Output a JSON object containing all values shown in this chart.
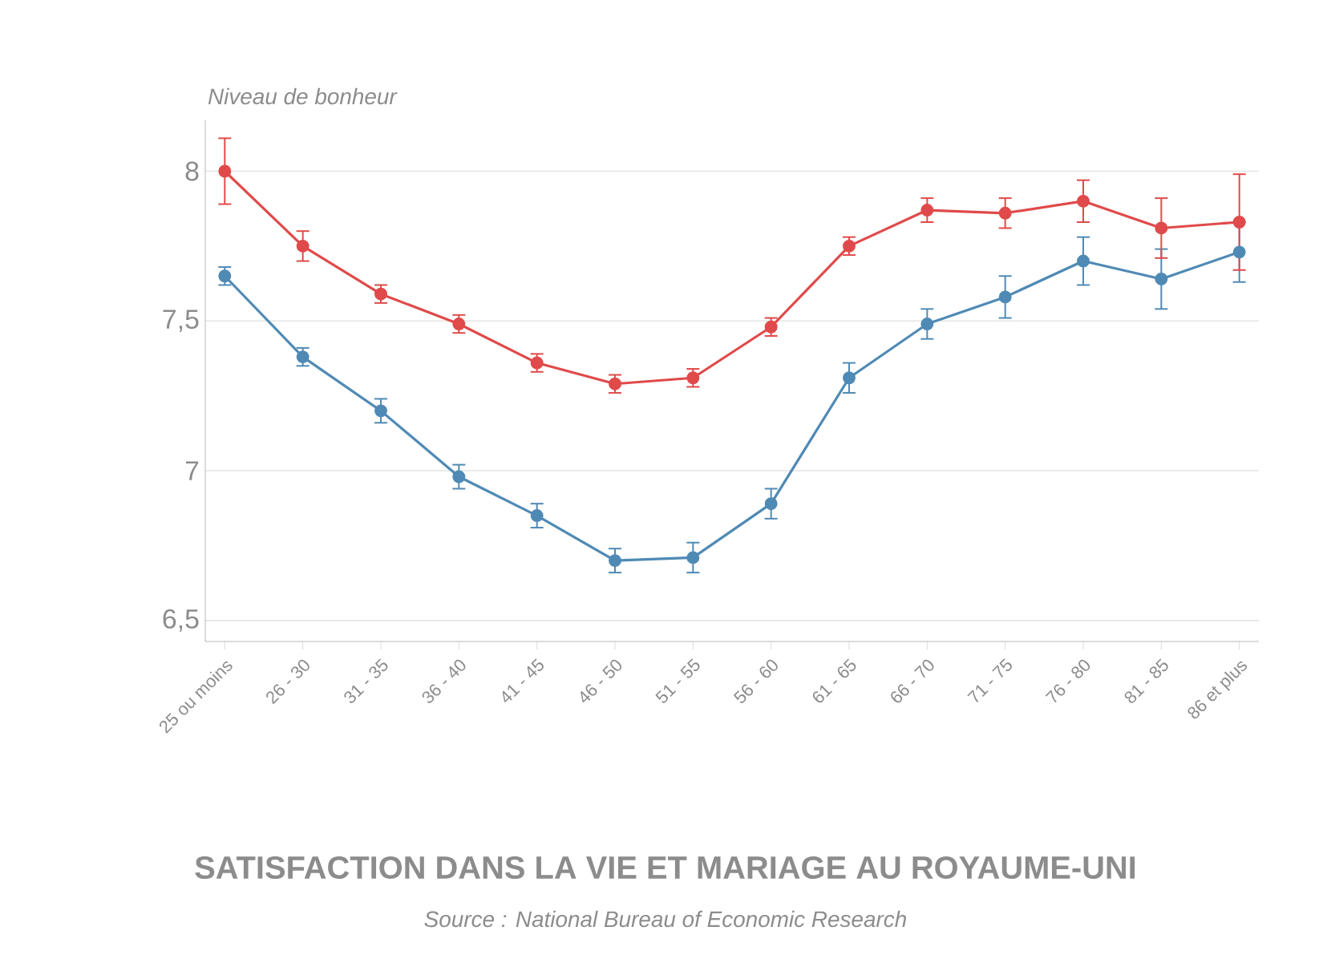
{
  "chart_data": {
    "type": "line",
    "title": "SATISFACTION DANS LA VIE ET MARIAGE AU ROYAUME-UNI",
    "ylabel": "Niveau de bonheur",
    "annotations": [
      "Source : National Bureau of Economic Research"
    ],
    "categories": [
      "25 ou moins",
      "26 - 30",
      "31 - 35",
      "36 - 40",
      "41 - 45",
      "46 - 50",
      "51 - 55",
      "56 - 60",
      "61 - 65",
      "66 - 70",
      "71 - 75",
      "76 - 80",
      "81 - 85",
      "86 et plus"
    ],
    "series": [
      {
        "color": "#4f8ab5",
        "values": [
          7.65,
          7.38,
          7.2,
          6.98,
          6.85,
          6.7,
          6.71,
          6.89,
          7.31,
          7.49,
          7.58,
          7.7,
          7.64,
          7.73
        ],
        "errors": [
          0.03,
          0.03,
          0.04,
          0.04,
          0.04,
          0.04,
          0.05,
          0.05,
          0.05,
          0.05,
          0.07,
          0.08,
          0.1,
          0.1
        ]
      },
      {
        "color": "#e04a4a",
        "values": [
          8.0,
          7.75,
          7.59,
          7.49,
          7.36,
          7.29,
          7.31,
          7.48,
          7.75,
          7.87,
          7.86,
          7.9,
          7.81,
          7.83
        ],
        "errors": [
          0.11,
          0.05,
          0.03,
          0.03,
          0.03,
          0.03,
          0.03,
          0.03,
          0.03,
          0.04,
          0.05,
          0.07,
          0.1,
          0.16
        ]
      }
    ],
    "ylim": [
      6.43,
      8.17
    ],
    "yticks": [
      {
        "value": 6.5,
        "label": "6,5"
      },
      7,
      {
        "value": 7.5,
        "label": "7,5"
      },
      8
    ],
    "grid": "y",
    "marker": "circle",
    "line_style": "solid"
  }
}
